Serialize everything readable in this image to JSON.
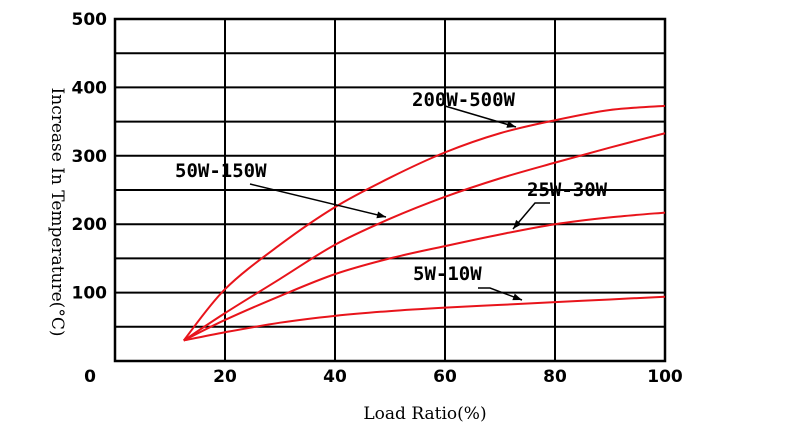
{
  "chart_data": {
    "type": "line",
    "xlabel": "Load Ratio(%)",
    "ylabel": "Increase In Temperature(°C)",
    "xlim": [
      0,
      100
    ],
    "ylim": [
      0,
      500
    ],
    "x_ticks": [
      "0",
      "20",
      "40",
      "60",
      "80",
      "100"
    ],
    "y_ticks": [
      "100",
      "200",
      "300",
      "400",
      "500"
    ],
    "grid": true,
    "line_color": "#e8141b",
    "series": [
      {
        "name": "200W-500W",
        "x": [
          12.5,
          20,
          30,
          40,
          50,
          60,
          70,
          80,
          90,
          100
        ],
        "y": [
          30,
          105,
          170,
          225,
          268,
          305,
          333,
          352,
          367,
          373
        ]
      },
      {
        "name": "50W-150W",
        "x": [
          12.5,
          20,
          30,
          40,
          50,
          60,
          70,
          80,
          90,
          100
        ],
        "y": [
          30,
          70,
          120,
          170,
          208,
          240,
          267,
          290,
          312,
          333
        ]
      },
      {
        "name": "25W-30W",
        "x": [
          12.5,
          20,
          30,
          40,
          50,
          60,
          70,
          80,
          90,
          100
        ],
        "y": [
          30,
          60,
          95,
          127,
          150,
          168,
          185,
          200,
          210,
          217
        ]
      },
      {
        "name": "5W-10W",
        "x": [
          12.5,
          20,
          30,
          40,
          50,
          60,
          70,
          80,
          90,
          100
        ],
        "y": [
          30,
          42,
          56,
          66,
          73,
          78,
          82,
          86,
          90,
          94
        ]
      }
    ]
  }
}
